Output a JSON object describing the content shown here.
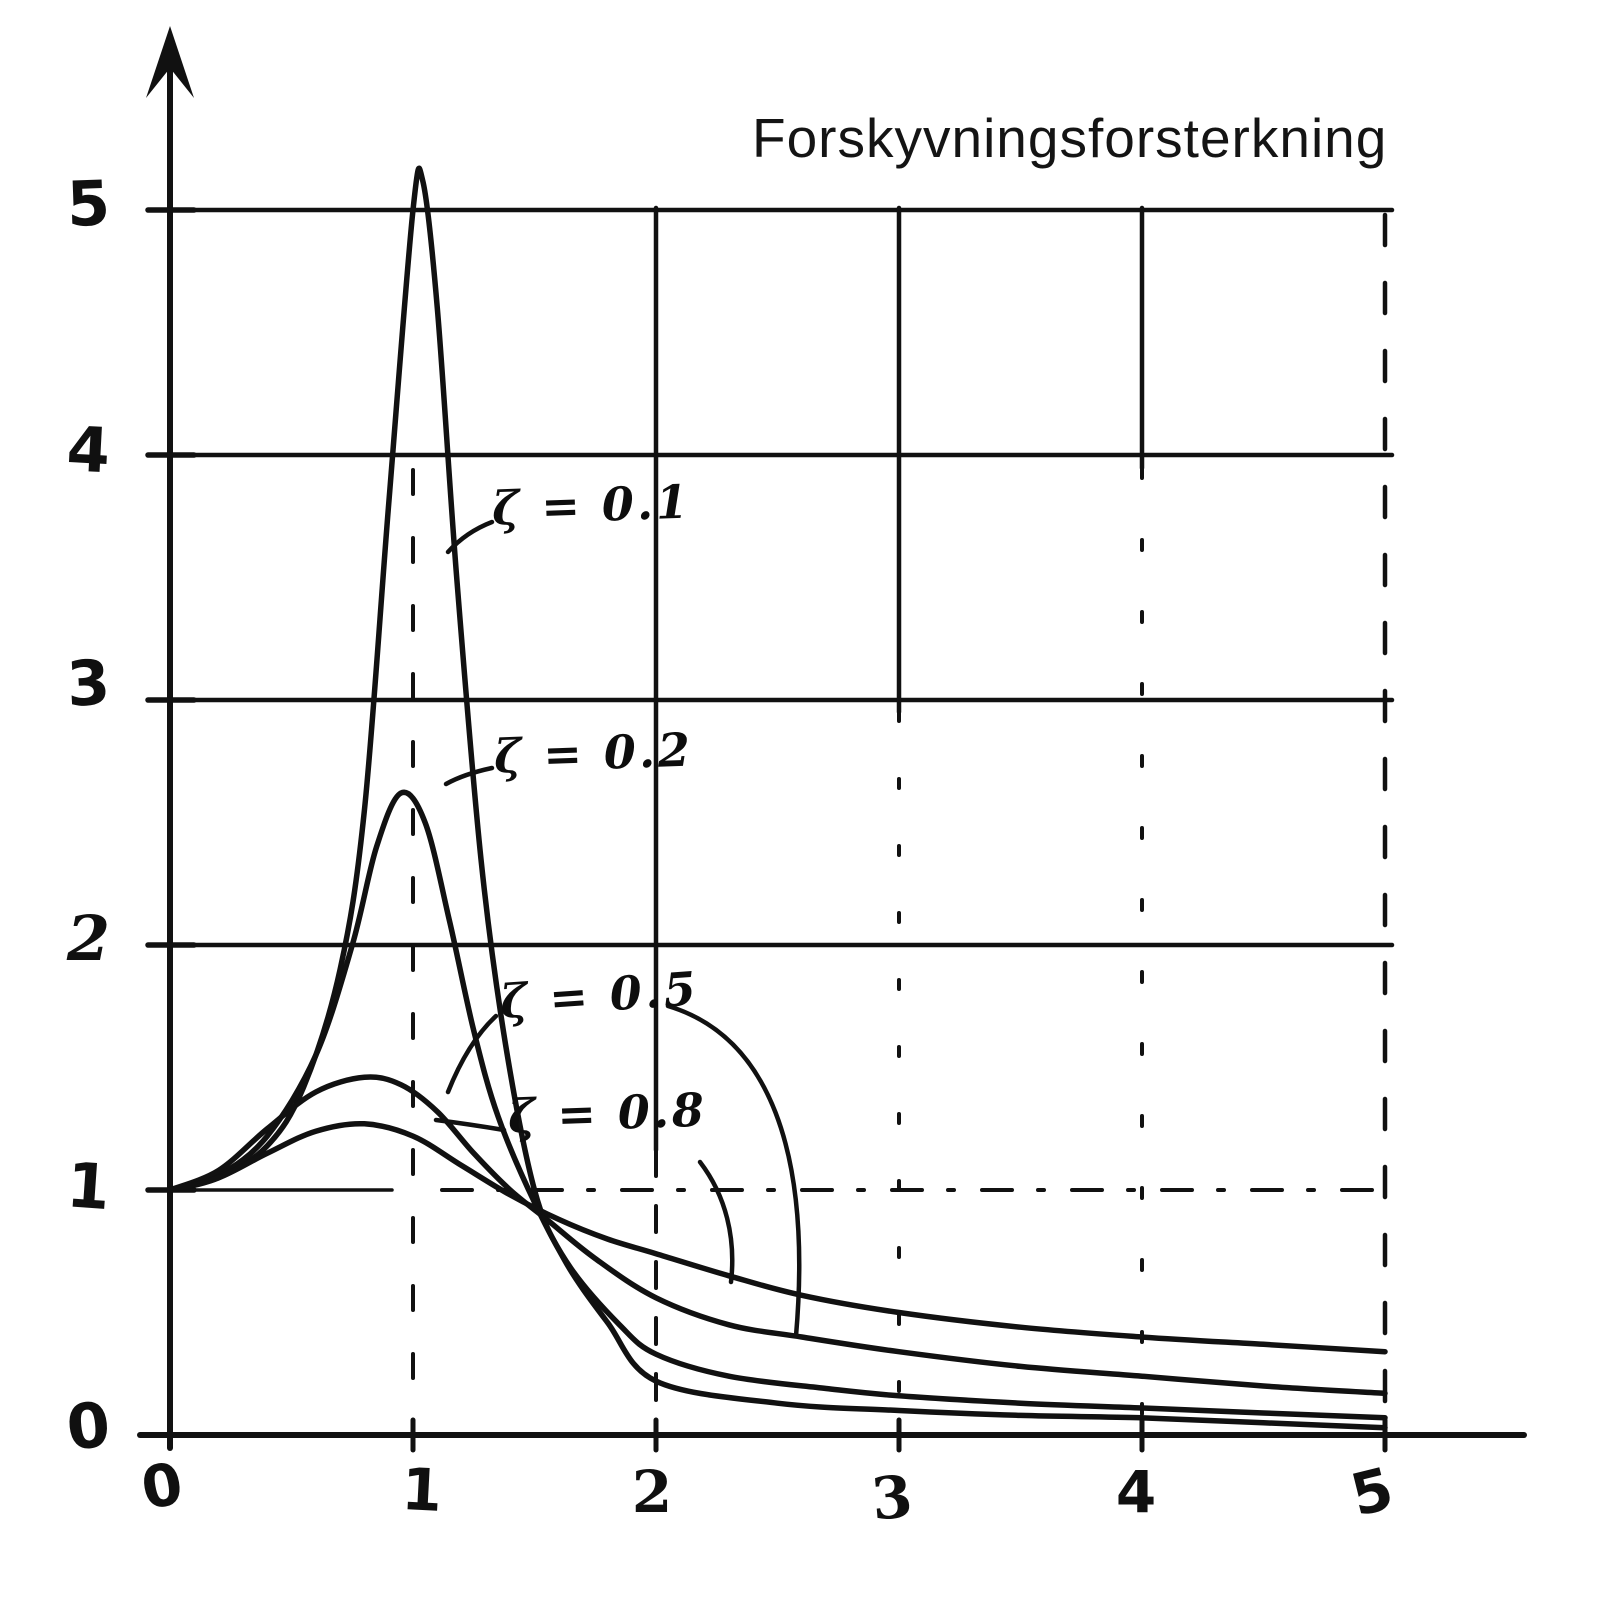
{
  "chart_data": {
    "type": "line",
    "title": "Forskyvningsforsterkning",
    "xlabel": "",
    "ylabel": "",
    "xlim": [
      0,
      5
    ],
    "ylim": [
      0,
      5
    ],
    "grid": true,
    "style": "hand-drawn-ink",
    "ink_color": "#111111",
    "x_ticks": [
      "0",
      "1",
      "2",
      "3",
      "4",
      "5"
    ],
    "y_ticks": [
      "0",
      "1",
      "2",
      "3",
      "4",
      "5"
    ],
    "legend_position": "inline-annotations",
    "series": [
      {
        "name": "zeta-0.1",
        "label": "ζ = 0.1",
        "damping_ratio": 0.1,
        "points": [
          [
            0,
            1.0
          ],
          [
            0.2,
            1.05
          ],
          [
            0.4,
            1.18
          ],
          [
            0.55,
            1.42
          ],
          [
            0.7,
            1.9
          ],
          [
            0.8,
            2.55
          ],
          [
            0.9,
            3.8
          ],
          [
            1.0,
            5.0
          ],
          [
            1.04,
            5.12
          ],
          [
            1.1,
            4.6
          ],
          [
            1.18,
            3.5
          ],
          [
            1.28,
            2.35
          ],
          [
            1.38,
            1.6
          ],
          [
            1.5,
            1.0
          ],
          [
            1.62,
            0.72
          ],
          [
            1.8,
            0.46
          ],
          [
            2.0,
            0.22
          ],
          [
            2.5,
            0.13
          ],
          [
            3.0,
            0.1
          ],
          [
            3.5,
            0.08
          ],
          [
            4.0,
            0.07
          ],
          [
            4.5,
            0.05
          ],
          [
            5.0,
            0.03
          ]
        ]
      },
      {
        "name": "zeta-0.2",
        "label": "ζ = 0.2",
        "damping_ratio": 0.2,
        "points": [
          [
            0,
            1.0
          ],
          [
            0.2,
            1.06
          ],
          [
            0.4,
            1.22
          ],
          [
            0.6,
            1.55
          ],
          [
            0.75,
            2.0
          ],
          [
            0.85,
            2.4
          ],
          [
            0.95,
            2.62
          ],
          [
            1.05,
            2.5
          ],
          [
            1.15,
            2.1
          ],
          [
            1.25,
            1.65
          ],
          [
            1.35,
            1.3
          ],
          [
            1.5,
            0.95
          ],
          [
            1.65,
            0.68
          ],
          [
            1.85,
            0.45
          ],
          [
            2.0,
            0.33
          ],
          [
            2.3,
            0.24
          ],
          [
            2.7,
            0.19
          ],
          [
            3.0,
            0.16
          ],
          [
            3.5,
            0.13
          ],
          [
            4.0,
            0.11
          ],
          [
            4.5,
            0.09
          ],
          [
            5.0,
            0.07
          ]
        ]
      },
      {
        "name": "zeta-0.5",
        "label": "ζ = 0.5",
        "damping_ratio": 0.5,
        "points": [
          [
            0,
            1.0
          ],
          [
            0.2,
            1.08
          ],
          [
            0.4,
            1.25
          ],
          [
            0.6,
            1.4
          ],
          [
            0.8,
            1.46
          ],
          [
            0.95,
            1.43
          ],
          [
            1.1,
            1.32
          ],
          [
            1.25,
            1.15
          ],
          [
            1.4,
            1.0
          ],
          [
            1.55,
            0.88
          ],
          [
            1.75,
            0.72
          ],
          [
            2.0,
            0.56
          ],
          [
            2.3,
            0.45
          ],
          [
            2.6,
            0.4
          ],
          [
            3.0,
            0.34
          ],
          [
            3.5,
            0.28
          ],
          [
            4.0,
            0.24
          ],
          [
            4.5,
            0.2
          ],
          [
            5.0,
            0.17
          ]
        ]
      },
      {
        "name": "zeta-0.8",
        "label": "ζ = 0.8",
        "damping_ratio": 0.8,
        "points": [
          [
            0,
            1.0
          ],
          [
            0.2,
            1.05
          ],
          [
            0.4,
            1.15
          ],
          [
            0.6,
            1.24
          ],
          [
            0.8,
            1.27
          ],
          [
            1.0,
            1.22
          ],
          [
            1.2,
            1.1
          ],
          [
            1.4,
            0.98
          ],
          [
            1.6,
            0.88
          ],
          [
            1.8,
            0.8
          ],
          [
            2.0,
            0.74
          ],
          [
            2.3,
            0.65
          ],
          [
            2.6,
            0.57
          ],
          [
            3.0,
            0.5
          ],
          [
            3.5,
            0.44
          ],
          [
            4.0,
            0.4
          ],
          [
            4.5,
            0.37
          ],
          [
            5.0,
            0.34
          ]
        ]
      }
    ]
  }
}
